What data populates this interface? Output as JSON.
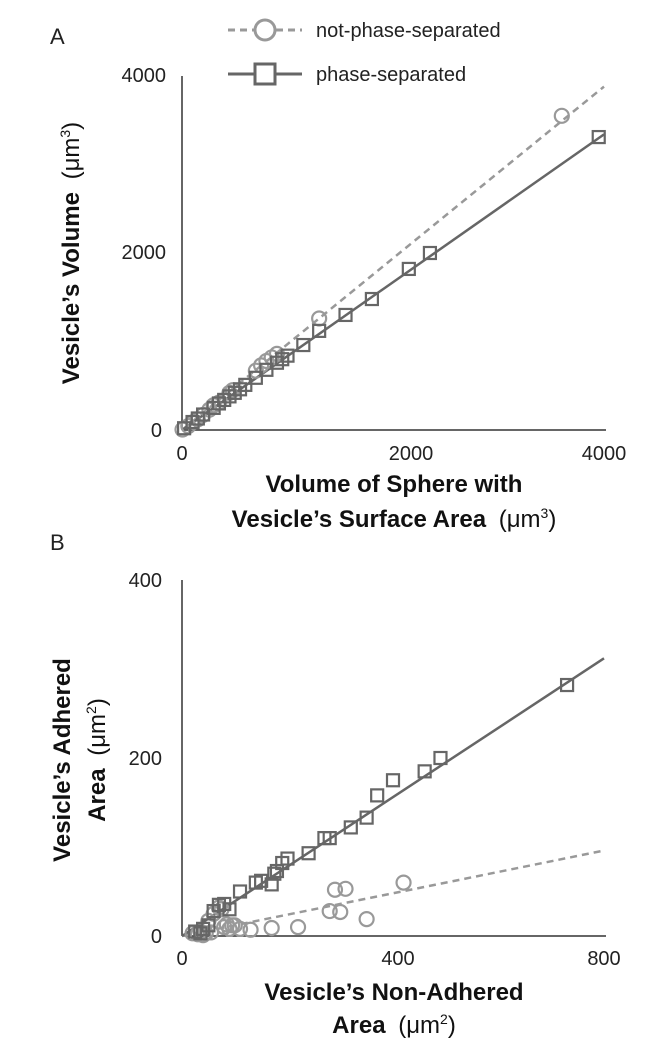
{
  "legend": [
    {
      "label": "not-phase-separated",
      "color": "#999999",
      "dash": true,
      "marker": "circle"
    },
    {
      "label": "phase-separated",
      "color": "#666666",
      "dash": false,
      "marker": "square"
    }
  ],
  "chart_data": [
    {
      "panel": "A",
      "type": "scatter",
      "xlabel": [
        "Volume of Sphere with",
        "Vesicle’s Surface Area",
        "(μm",
        "3",
        ")"
      ],
      "ylabel": [
        "Vesicle’s Volume",
        "(μm",
        "3",
        ")"
      ],
      "xlim": [
        0,
        4000
      ],
      "ylim": [
        0,
        4000
      ],
      "xticks": [
        0,
        2000,
        4000
      ],
      "yticks": [
        0,
        2000,
        4000
      ],
      "series": [
        {
          "name": "not-phase-separated",
          "color": "#999999",
          "marker": "circle",
          "points": [
            [
              5,
              5
            ],
            [
              60,
              45
            ],
            [
              110,
              90
            ],
            [
              150,
              120
            ],
            [
              200,
              170
            ],
            [
              260,
              230
            ],
            [
              300,
              280
            ],
            [
              350,
              310
            ],
            [
              450,
              420
            ],
            [
              480,
              450
            ],
            [
              700,
              670
            ],
            [
              750,
              730
            ],
            [
              800,
              780
            ],
            [
              850,
              820
            ],
            [
              900,
              860
            ],
            [
              1300,
              1260
            ],
            [
              3600,
              3550
            ]
          ],
          "fit": {
            "slope": 0.97,
            "intercept": 0,
            "dash": true
          }
        },
        {
          "name": "phase-separated",
          "color": "#666666",
          "marker": "square",
          "points": [
            [
              20,
              20
            ],
            [
              100,
              90
            ],
            [
              150,
              130
            ],
            [
              200,
              175
            ],
            [
              300,
              250
            ],
            [
              350,
              300
            ],
            [
              400,
              340
            ],
            [
              450,
              380
            ],
            [
              500,
              420
            ],
            [
              550,
              460
            ],
            [
              600,
              510
            ],
            [
              700,
              590
            ],
            [
              800,
              680
            ],
            [
              900,
              760
            ],
            [
              950,
              800
            ],
            [
              1000,
              840
            ],
            [
              1150,
              960
            ],
            [
              1300,
              1120
            ],
            [
              1550,
              1300
            ],
            [
              1800,
              1480
            ],
            [
              2150,
              1820
            ],
            [
              2350,
              2000
            ],
            [
              3950,
              3310
            ]
          ],
          "fit": {
            "slope": 0.835,
            "intercept": 0,
            "dash": false
          }
        }
      ]
    },
    {
      "panel": "B",
      "type": "scatter",
      "xlabel": [
        "Vesicle’s Non-Adhered",
        "Area",
        "(μm",
        "2",
        ")"
      ],
      "ylabel": [
        "Vesicle’s Adhered",
        "Area",
        "(μm",
        "2",
        ")"
      ],
      "xlim": [
        0,
        800
      ],
      "ylim": [
        0,
        400
      ],
      "xticks": [
        0,
        400,
        800
      ],
      "yticks": [
        0,
        200,
        400
      ],
      "series": [
        {
          "name": "not-phase-separated",
          "color": "#999999",
          "marker": "circle",
          "points": [
            [
              20,
              3
            ],
            [
              30,
              2
            ],
            [
              35,
              5
            ],
            [
              40,
              1
            ],
            [
              45,
              3
            ],
            [
              50,
              17
            ],
            [
              55,
              4
            ],
            [
              60,
              25
            ],
            [
              70,
              32
            ],
            [
              75,
              30
            ],
            [
              80,
              10
            ],
            [
              85,
              13
            ],
            [
              90,
              8
            ],
            [
              95,
              12
            ],
            [
              100,
              12
            ],
            [
              110,
              8
            ],
            [
              130,
              7
            ],
            [
              170,
              9
            ],
            [
              220,
              10
            ],
            [
              280,
              28
            ],
            [
              290,
              52
            ],
            [
              300,
              27
            ],
            [
              310,
              53
            ],
            [
              350,
              19
            ],
            [
              420,
              60
            ]
          ],
          "fit": {
            "slope": 0.12,
            "intercept": 0,
            "dash": true
          }
        },
        {
          "name": "phase-separated",
          "color": "#666666",
          "marker": "square",
          "points": [
            [
              25,
              5
            ],
            [
              35,
              3
            ],
            [
              40,
              8
            ],
            [
              50,
              12
            ],
            [
              60,
              28
            ],
            [
              70,
              35
            ],
            [
              80,
              36
            ],
            [
              90,
              30
            ],
            [
              110,
              50
            ],
            [
              140,
              60
            ],
            [
              150,
              62
            ],
            [
              170,
              58
            ],
            [
              175,
              70
            ],
            [
              180,
              73
            ],
            [
              190,
              82
            ],
            [
              200,
              87
            ],
            [
              240,
              93
            ],
            [
              270,
              110
            ],
            [
              280,
              110
            ],
            [
              320,
              122
            ],
            [
              350,
              133
            ],
            [
              370,
              158
            ],
            [
              400,
              175
            ],
            [
              460,
              185
            ],
            [
              490,
              200
            ],
            [
              730,
              282
            ]
          ],
          "fit": {
            "slope": 0.39,
            "intercept": 0,
            "dash": false
          }
        }
      ]
    }
  ]
}
